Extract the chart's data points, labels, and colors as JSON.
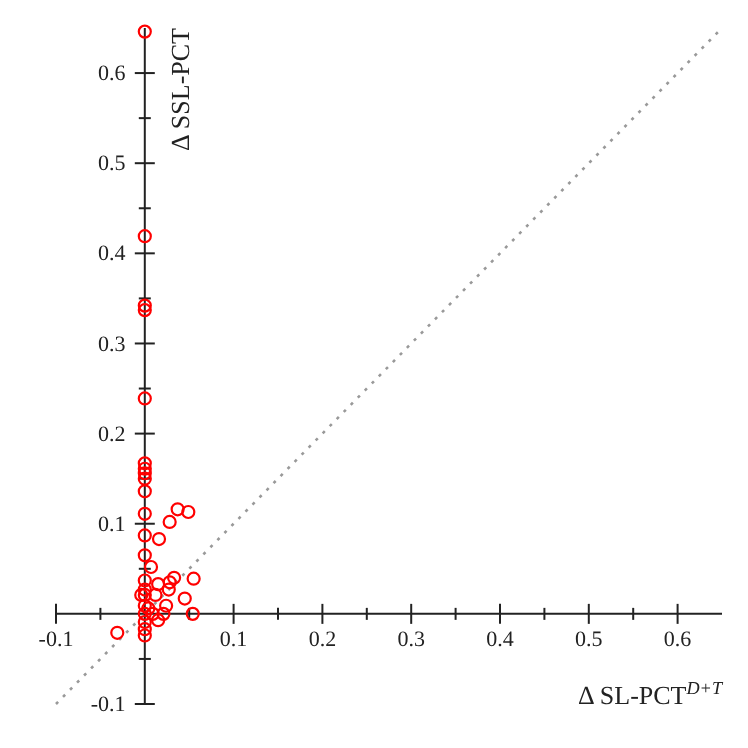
{
  "chart_data": {
    "type": "scatter",
    "xlabel": "Δ SL-PCT$^{D+T}$",
    "ylabel": "Δ SSL-PCT",
    "xlim": [
      -0.1,
      0.65
    ],
    "ylim": [
      -0.1,
      0.65
    ],
    "xticks": [
      -0.1,
      {
        "value": -0.05,
        "label": null
      },
      {
        "value": 0.05,
        "label": null
      },
      0.1,
      {
        "value": 0.15,
        "label": null
      },
      0.2,
      {
        "value": 0.25,
        "label": null
      },
      0.3,
      {
        "value": 0.35,
        "label": null
      },
      0.4,
      {
        "value": 0.45,
        "label": null
      },
      0.5,
      {
        "value": 0.55,
        "label": null
      },
      0.6
    ],
    "yticks": [
      -0.1,
      {
        "value": -0.05,
        "label": null
      },
      {
        "value": 0.05,
        "label": null
      },
      0.1,
      {
        "value": 0.15,
        "label": null
      },
      0.2,
      {
        "value": 0.25,
        "label": null
      },
      0.3,
      {
        "value": 0.35,
        "label": null
      },
      0.4,
      {
        "value": 0.45,
        "label": null
      },
      0.5,
      {
        "value": 0.55,
        "label": null
      },
      0.6
    ],
    "grid": false,
    "marker": "circle",
    "series": [
      {
        "type": "line",
        "color": "#999999",
        "line_style": "dotted",
        "marker": "none",
        "x": [
          -0.1,
          0.65
        ],
        "values": [
          -0.1,
          0.65
        ]
      },
      {
        "color": "#ff0000",
        "x": [
          0,
          0,
          0,
          0,
          0,
          0,
          0,
          0,
          0,
          0,
          0,
          0,
          0,
          0,
          0,
          0,
          0,
          0,
          0,
          0,
          0,
          -0.031,
          -0.004,
          0.007,
          0.015,
          0.012,
          0.016,
          0.028,
          0.037,
          0.049,
          0.033,
          0.028,
          0.027,
          0.055,
          0.045,
          0.054,
          0.024,
          0.021,
          0.015,
          0.009,
          0.004
        ],
        "values": [
          0.646,
          0.419,
          0.342,
          0.337,
          0.239,
          0.167,
          0.161,
          0.156,
          0.15,
          0.136,
          0.111,
          0.087,
          0.065,
          0.037,
          0.027,
          0.021,
          0.009,
          0,
          -0.009,
          -0.017,
          -0.024,
          -0.021,
          0.021,
          0.052,
          0.033,
          0.021,
          0.083,
          0.102,
          0.116,
          0.113,
          0.04,
          0.035,
          0.027,
          0.039,
          0.017,
          0,
          0.009,
          0,
          -0.007,
          0,
          0.006
        ]
      }
    ]
  }
}
